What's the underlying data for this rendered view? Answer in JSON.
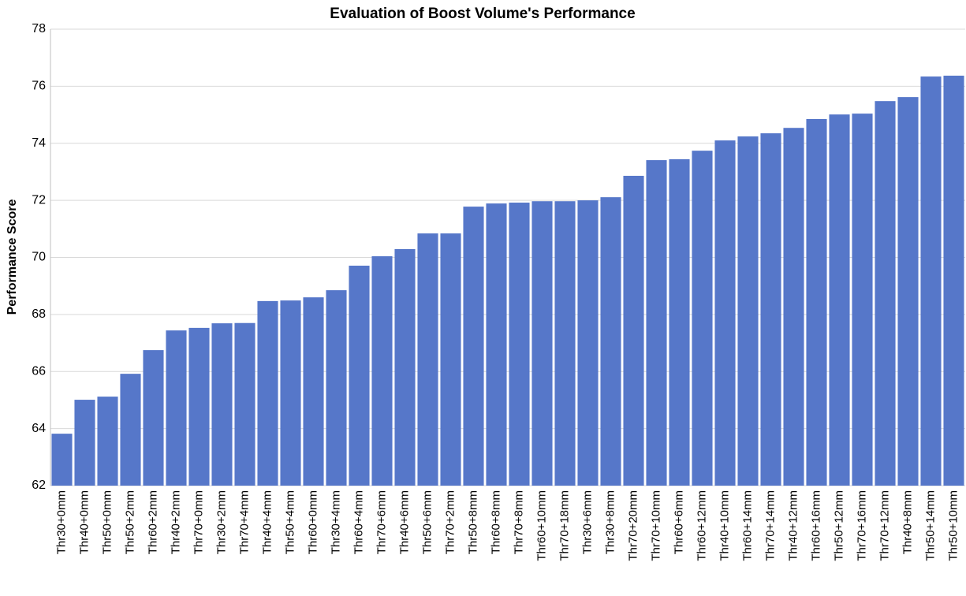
{
  "chart_data": {
    "type": "bar",
    "title": "Evaluation of Boost Volume's Performance",
    "y_label": "Performance Score",
    "categories": [
      "Thr30+0mm",
      "Thr40+0mm",
      "Thr50+0mm",
      "Thr50+2mm",
      "Thr60+2mm",
      "Thr40+2mm",
      "Thr70+0mm",
      "Thr30+2mm",
      "Thr70+4mm",
      "Thr40+4mm",
      "Thr50+4mm",
      "Thr60+0mm",
      "Thr30+4mm",
      "Thr60+4mm",
      "Thr70+6mm",
      "Thr40+6mm",
      "Thr50+6mm",
      "Thr70+2mm",
      "Thr50+8mm",
      "Thr60+8mm",
      "Thr70+8mm",
      "Thr60+10mm",
      "Thr70+18mm",
      "Thr30+6mm",
      "Thr30+8mm",
      "Thr70+20mm",
      "Thr70+10mm",
      "Thr60+6mm",
      "Thr60+12mm",
      "Thr40+10mm",
      "Thr60+14mm",
      "Thr70+14mm",
      "Thr40+12mm",
      "Thr60+16mm",
      "Thr50+12mm",
      "Thr70+16mm",
      "Thr70+12mm",
      "Thr40+8mm",
      "Thr50+14mm",
      "Thr50+10mm"
    ],
    "values": [
      63.82,
      65.01,
      65.12,
      65.92,
      66.75,
      67.44,
      67.53,
      67.69,
      67.7,
      68.47,
      68.49,
      68.6,
      68.85,
      69.71,
      70.04,
      70.29,
      70.84,
      70.84,
      71.78,
      71.89,
      71.92,
      71.97,
      71.97,
      72.0,
      72.11,
      72.86,
      73.41,
      73.44,
      73.74,
      74.1,
      74.24,
      74.35,
      74.54,
      74.85,
      75.01,
      75.04,
      75.48,
      75.62,
      76.34,
      76.37
    ],
    "color": "#5677c9",
    "ylim": [
      62,
      78
    ],
    "yticks": [
      62,
      64,
      66,
      68,
      70,
      72,
      74,
      76,
      78
    ],
    "grid": true
  }
}
